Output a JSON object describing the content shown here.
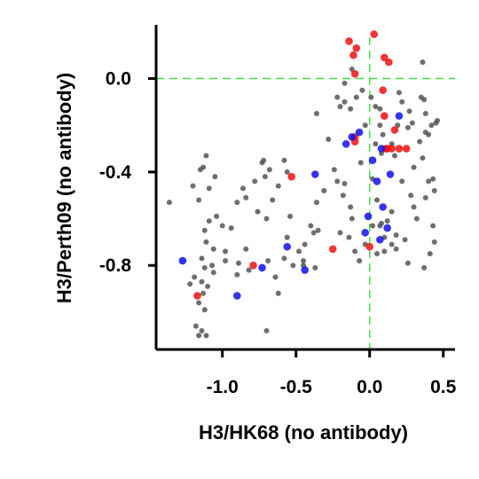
{
  "chart_data": {
    "type": "scatter",
    "title": "",
    "xlabel": "H3/HK68 (no antibody)",
    "ylabel": "H3/Perth09 (no antibody)",
    "xlim": [
      -1.45,
      0.58
    ],
    "ylim": [
      -1.16,
      0.23
    ],
    "x_ticks": [
      -1.0,
      -0.5,
      0.0,
      0.5
    ],
    "x_tick_labels": [
      "-1.0",
      "-0.5",
      "0.0",
      "0.5"
    ],
    "y_ticks": [
      0.0,
      -0.4,
      -0.8
    ],
    "y_tick_labels": [
      "0.0",
      "-0.4",
      "-0.8"
    ],
    "grid": false,
    "reference_lines": {
      "x": 0.0,
      "y": 0.0,
      "color": "#44dd44",
      "style": "dashed"
    },
    "legend": "none",
    "colors": {
      "gray": "#555555",
      "red": "#ee1111",
      "blue": "#1111ee"
    },
    "series": [
      {
        "color": "gray",
        "points": [
          [
            -1.36,
            -0.53
          ],
          [
            -1.2,
            -0.46
          ],
          [
            -1.11,
            -0.33
          ],
          [
            -1.13,
            -0.38
          ],
          [
            -1.15,
            -0.39
          ],
          [
            -1.05,
            -0.42
          ],
          [
            -1.09,
            -0.47
          ],
          [
            -1.16,
            -0.52
          ],
          [
            -1.04,
            -0.59
          ],
          [
            -1.09,
            -0.61
          ],
          [
            -1.12,
            -0.65
          ],
          [
            -1.11,
            -0.7
          ],
          [
            -1.06,
            -0.73
          ],
          [
            -1.14,
            -0.77
          ],
          [
            -1.12,
            -0.81
          ],
          [
            -1.07,
            -0.8
          ],
          [
            -1.19,
            -0.85
          ],
          [
            -1.14,
            -0.87
          ],
          [
            -1.1,
            -0.89
          ],
          [
            -1.13,
            -0.92
          ],
          [
            -1.16,
            -0.96
          ],
          [
            -1.12,
            -0.99
          ],
          [
            -1.18,
            -1.06
          ],
          [
            -1.14,
            -1.08
          ],
          [
            -1.11,
            -1.1
          ],
          [
            -1.16,
            -1.1
          ],
          [
            -1.22,
            -0.88
          ],
          [
            -1.0,
            -0.63
          ],
          [
            -0.94,
            -0.64
          ],
          [
            -0.98,
            -0.74
          ],
          [
            -0.89,
            -0.79
          ],
          [
            -0.84,
            -0.73
          ],
          [
            -0.82,
            -0.82
          ],
          [
            -0.9,
            -0.84
          ],
          [
            -0.98,
            -0.78
          ],
          [
            -1.06,
            -0.83
          ],
          [
            -0.9,
            -0.53
          ],
          [
            -0.86,
            -0.47
          ],
          [
            -0.84,
            -0.51
          ],
          [
            -0.78,
            -0.44
          ],
          [
            -0.73,
            -0.36
          ],
          [
            -0.72,
            -0.35
          ],
          [
            -0.68,
            -0.39
          ],
          [
            -0.71,
            -0.42
          ],
          [
            -0.62,
            -0.46
          ],
          [
            -0.56,
            -0.4
          ],
          [
            -0.58,
            -0.35
          ],
          [
            -0.66,
            -0.52
          ],
          [
            -0.7,
            -0.6
          ],
          [
            -0.76,
            -0.57
          ],
          [
            -0.69,
            -0.78
          ],
          [
            -0.56,
            -0.68
          ],
          [
            -0.54,
            -0.59
          ],
          [
            -0.58,
            -0.77
          ],
          [
            -0.62,
            -0.92
          ],
          [
            -0.64,
            -0.85
          ],
          [
            -0.7,
            -1.08
          ],
          [
            -0.48,
            -0.74
          ],
          [
            -0.44,
            -0.71
          ],
          [
            -0.45,
            -0.78
          ],
          [
            -0.38,
            -0.66
          ],
          [
            -0.35,
            -0.65
          ],
          [
            -0.4,
            -0.63
          ],
          [
            -0.36,
            -0.53
          ],
          [
            -0.31,
            -0.48
          ],
          [
            -0.37,
            -0.81
          ],
          [
            -0.45,
            -0.8
          ],
          [
            -0.52,
            -0.8
          ],
          [
            -0.36,
            -0.15
          ],
          [
            -0.28,
            -0.26
          ],
          [
            -0.24,
            -0.39
          ],
          [
            -0.22,
            -0.44
          ],
          [
            -0.17,
            -0.45
          ],
          [
            -0.18,
            -0.5
          ],
          [
            -0.13,
            -0.55
          ],
          [
            -0.12,
            -0.6
          ],
          [
            -0.2,
            -0.66
          ],
          [
            -0.14,
            -0.68
          ],
          [
            -0.1,
            -0.74
          ],
          [
            -0.07,
            -0.78
          ],
          [
            -0.03,
            -0.71
          ],
          [
            -0.22,
            -0.08
          ],
          [
            -0.17,
            -0.1
          ],
          [
            -0.2,
            -0.12
          ],
          [
            -0.13,
            -0.13
          ],
          [
            -0.17,
            -0.02
          ],
          [
            -0.12,
            0.04
          ],
          [
            -0.09,
            -0.08
          ],
          [
            -0.03,
            -0.2
          ],
          [
            -0.05,
            -0.05
          ],
          [
            0.01,
            -0.08
          ],
          [
            0.04,
            -0.12
          ],
          [
            0.07,
            -0.13
          ],
          [
            0.07,
            -0.2
          ],
          [
            0.09,
            -0.24
          ],
          [
            0.04,
            -0.28
          ],
          [
            0.08,
            -0.32
          ],
          [
            0.15,
            -0.28
          ],
          [
            0.17,
            -0.33
          ],
          [
            0.02,
            -0.43
          ],
          [
            0.05,
            -0.52
          ],
          [
            0.02,
            -0.63
          ],
          [
            0.08,
            -0.62
          ],
          [
            0.12,
            -0.61
          ],
          [
            0.15,
            -0.57
          ],
          [
            0.1,
            -0.68
          ],
          [
            0.15,
            -0.71
          ],
          [
            0.1,
            -0.74
          ],
          [
            0.18,
            -0.73
          ],
          [
            0.18,
            -0.67
          ],
          [
            0.24,
            -0.69
          ],
          [
            0.26,
            -0.79
          ],
          [
            0.22,
            -0.44
          ],
          [
            0.28,
            -0.5
          ],
          [
            0.3,
            -0.55
          ],
          [
            0.32,
            -0.6
          ],
          [
            0.38,
            -0.51
          ],
          [
            0.4,
            -0.44
          ],
          [
            0.44,
            -0.48
          ],
          [
            0.43,
            -0.63
          ],
          [
            0.44,
            -0.7
          ],
          [
            0.41,
            -0.75
          ],
          [
            0.37,
            -0.81
          ],
          [
            0.3,
            -0.38
          ],
          [
            0.34,
            -0.27
          ],
          [
            0.36,
            -0.34
          ],
          [
            0.4,
            -0.24
          ],
          [
            0.42,
            -0.2
          ],
          [
            0.45,
            -0.19
          ],
          [
            0.46,
            -0.18
          ],
          [
            0.38,
            -0.15
          ],
          [
            0.38,
            -0.23
          ],
          [
            0.37,
            -0.09
          ],
          [
            0.35,
            -0.08
          ],
          [
            0.29,
            -0.19
          ],
          [
            0.26,
            -0.21
          ],
          [
            0.22,
            -0.1
          ],
          [
            0.36,
            0.07
          ],
          [
            0.43,
            -0.43
          ],
          [
            0.27,
            -0.14
          ],
          [
            0.2,
            -0.06
          ],
          [
            0.19,
            -0.2
          ],
          [
            0.07,
            -0.63
          ],
          [
            0.05,
            -0.75
          ],
          [
            -0.06,
            -0.36
          ]
        ]
      },
      {
        "color": "red",
        "points": [
          [
            0.03,
            0.19
          ],
          [
            -0.14,
            0.16
          ],
          [
            -0.11,
            0.1
          ],
          [
            -0.09,
            0.13
          ],
          [
            -0.1,
            0.02
          ],
          [
            0.1,
            0.09
          ],
          [
            0.13,
            0.07
          ],
          [
            0.09,
            -0.05
          ],
          [
            0.1,
            -0.16
          ],
          [
            0.17,
            -0.22
          ],
          [
            -0.1,
            -0.25
          ],
          [
            -0.1,
            -0.27
          ],
          [
            0.11,
            -0.3
          ],
          [
            0.15,
            -0.3
          ],
          [
            0.2,
            -0.3
          ],
          [
            0.25,
            -0.3
          ],
          [
            0.12,
            -0.3
          ],
          [
            -0.53,
            -0.42
          ],
          [
            -0.25,
            -0.73
          ],
          [
            -0.79,
            -0.8
          ],
          [
            -1.17,
            -0.93
          ],
          [
            0.0,
            -0.72
          ]
        ]
      },
      {
        "color": "blue",
        "points": [
          [
            0.2,
            -0.16
          ],
          [
            -0.07,
            -0.23
          ],
          [
            -0.12,
            -0.25
          ],
          [
            -0.16,
            -0.28
          ],
          [
            0.08,
            -0.3
          ],
          [
            0.02,
            -0.35
          ],
          [
            0.14,
            -0.41
          ],
          [
            0.05,
            -0.44
          ],
          [
            0.09,
            -0.55
          ],
          [
            -0.01,
            -0.59
          ],
          [
            0.12,
            -0.64
          ],
          [
            -0.03,
            -0.66
          ],
          [
            0.07,
            -0.69
          ],
          [
            -0.37,
            -0.41
          ],
          [
            -0.56,
            -0.72
          ],
          [
            -0.73,
            -0.81
          ],
          [
            -0.9,
            -0.93
          ],
          [
            -1.27,
            -0.78
          ],
          [
            -0.44,
            -0.82
          ]
        ]
      }
    ]
  }
}
